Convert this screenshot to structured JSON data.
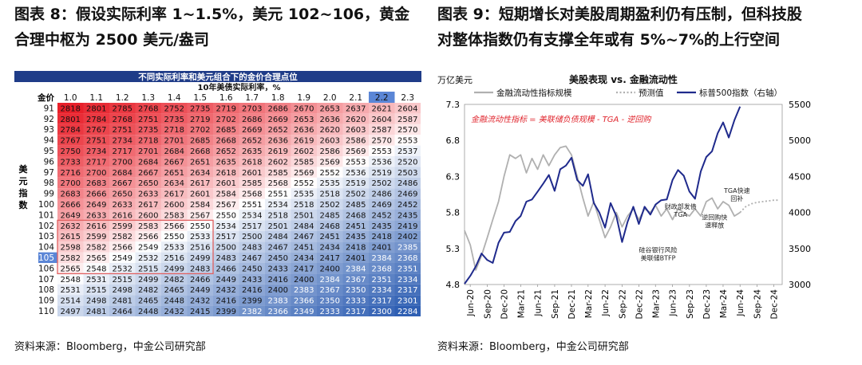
{
  "left": {
    "title_line1": "图表 8：假设实际利率 1~1.5%，美元 102~106，黄金",
    "title_line2": "合理中枢为 2500 美元/盎司",
    "source": "资料来源：Bloomberg，中金公司研究部"
  },
  "right": {
    "title_line1": "图表 9：短期增长对美股周期盈利仍有压制，但科技股",
    "title_line2": "对整体指数仍有支撑全年或有 5%~7%的上行空间",
    "source": "资料来源：Bloomberg，中金公司研究部"
  },
  "chart_data": [
    {
      "type": "heatmap",
      "title": "不同实际利率和美元组合下的金价合理点位",
      "xlabel": "10年美债实际利率，%",
      "ylabel": "美元指数",
      "corner_label": "金价",
      "highlight_row": "105",
      "highlight_cols": [
        "2.2"
      ],
      "scale_colors": {
        "high": "#e8202a",
        "mid": "#ffffff",
        "low": "#2f5fb3"
      },
      "box_color": "#e06060",
      "header_bar_color": "#1f3c88",
      "columns": [
        "1.0",
        "1.1",
        "1.2",
        "1.3",
        "1.4",
        "1.5",
        "1.6",
        "1.7",
        "1.8",
        "1.9",
        "2.0",
        "2.1",
        "2.2",
        "2.3"
      ],
      "rows": [
        "91",
        "92",
        "93",
        "94",
        "95",
        "96",
        "97",
        "98",
        "99",
        "100",
        "101",
        "102",
        "103",
        "104",
        "105",
        "106",
        "107",
        "108",
        "109",
        "110"
      ],
      "values": [
        [
          2818,
          2801,
          2785,
          2768,
          2752,
          2735,
          2719,
          2703,
          2686,
          2670,
          2653,
          2637,
          2621,
          2604
        ],
        [
          2801,
          2784,
          2768,
          2751,
          2735,
          2719,
          2702,
          2686,
          2669,
          2653,
          2636,
          2620,
          2604,
          2587
        ],
        [
          2784,
          2767,
          2751,
          2735,
          2718,
          2702,
          2685,
          2669,
          2652,
          2636,
          2620,
          2603,
          2587,
          2570
        ],
        [
          2767,
          2751,
          2734,
          2718,
          2701,
          2685,
          2668,
          2652,
          2636,
          2619,
          2603,
          2586,
          2570,
          2553
        ],
        [
          2750,
          2734,
          2717,
          2701,
          2684,
          2668,
          2652,
          2635,
          2619,
          2602,
          2586,
          2569,
          2553,
          2537
        ],
        [
          2733,
          2717,
          2700,
          2684,
          2667,
          2651,
          2635,
          2618,
          2602,
          2585,
          2569,
          2553,
          2536,
          2520
        ],
        [
          2716,
          2700,
          2684,
          2667,
          2651,
          2634,
          2618,
          2601,
          2585,
          2569,
          2552,
          2536,
          2519,
          2503
        ],
        [
          2700,
          2683,
          2667,
          2650,
          2634,
          2617,
          2601,
          2585,
          2568,
          2552,
          2535,
          2519,
          2502,
          2486
        ],
        [
          2683,
          2666,
          2650,
          2633,
          2617,
          2601,
          2584,
          2568,
          2551,
          2535,
          2518,
          2502,
          2486,
          2469
        ],
        [
          2666,
          2649,
          2633,
          2617,
          2600,
          2584,
          2567,
          2551,
          2534,
          2518,
          2502,
          2485,
          2469,
          2452
        ],
        [
          2649,
          2633,
          2616,
          2600,
          2583,
          2567,
          2550,
          2534,
          2518,
          2501,
          2485,
          2468,
          2452,
          2435
        ],
        [
          2632,
          2616,
          2599,
          2583,
          2566,
          2550,
          2534,
          2517,
          2501,
          2484,
          2468,
          2451,
          2435,
          2419
        ],
        [
          2615,
          2599,
          2582,
          2566,
          2550,
          2533,
          2517,
          2500,
          2484,
          2467,
          2451,
          2435,
          2418,
          2402
        ],
        [
          2598,
          2582,
          2566,
          2549,
          2533,
          2516,
          2500,
          2483,
          2467,
          2451,
          2434,
          2418,
          2401,
          2385
        ],
        [
          2582,
          2565,
          2549,
          2532,
          2516,
          2499,
          2483,
          2467,
          2450,
          2434,
          2417,
          2401,
          2384,
          2368
        ],
        [
          2565,
          2548,
          2532,
          2515,
          2499,
          2483,
          2466,
          2450,
          2433,
          2417,
          2400,
          2384,
          2368,
          2351
        ],
        [
          2548,
          2531,
          2515,
          2499,
          2482,
          2466,
          2449,
          2433,
          2416,
          2400,
          2384,
          2367,
          2351,
          2334
        ],
        [
          2531,
          2515,
          2498,
          2482,
          2465,
          2449,
          2432,
          2416,
          2400,
          2383,
          2367,
          2350,
          2334,
          2317
        ],
        [
          2514,
          2498,
          2481,
          2465,
          2448,
          2432,
          2416,
          2399,
          2383,
          2366,
          2350,
          2333,
          2317,
          2301
        ],
        [
          2497,
          2481,
          2464,
          2448,
          2432,
          2415,
          2399,
          2382,
          2366,
          2349,
          2333,
          2317,
          2300,
          2284
        ]
      ],
      "boxed_cells": {
        "rows": [
          "102",
          "106"
        ],
        "cols": [
          "1.0",
          "1.5"
        ]
      }
    },
    {
      "type": "line",
      "title": "美股表现 vs. 金融流动性",
      "ylabel_left": "万亿美元",
      "ylim_left": [
        4.8,
        7.3
      ],
      "yticks_left": [
        4.8,
        5.3,
        5.8,
        6.3,
        6.8,
        7.3
      ],
      "ylim_right": [
        3000,
        5500
      ],
      "yticks_right": [
        3000,
        3500,
        4000,
        4500,
        5000,
        5500
      ],
      "x_ticks": [
        "Jun-20",
        "Sep-20",
        "Dec-20",
        "Mar-21",
        "Jun-21",
        "Sep-21",
        "Dec-21",
        "Mar-22",
        "Jun-22",
        "Sep-22",
        "Dec-22",
        "Mar-23",
        "Jun-23",
        "Sep-23",
        "Dec-23",
        "Mar-24",
        "Jun-24",
        "Sep-24",
        "Dec-24"
      ],
      "x_range": [
        "2020-05-01",
        "2025-01-15"
      ],
      "formula_note": "金融流动性指标 = 美联储负债规模 - TGA - 逆回购",
      "annotations": [
        {
          "text": "TGA快速\n回补",
          "x": "2024-05-15",
          "y": 6.07
        },
        {
          "text": "财政部发债\nTGA",
          "x": "2023-07-15",
          "y": 5.85
        },
        {
          "text": "逆回购快\n速释放",
          "x": "2024-01-15",
          "y": 5.7
        },
        {
          "text": "硅谷银行风险\n美联储BTFP",
          "x": "2023-03-15",
          "y": 5.25
        }
      ],
      "series": [
        {
          "name": "金融流动性指标规模",
          "axis": "left",
          "color": "#b0b0b0",
          "style": "solid",
          "points": [
            [
              "2020-05-01",
              5.55
            ],
            [
              "2020-06-01",
              5.35
            ],
            [
              "2020-07-01",
              5.0
            ],
            [
              "2020-08-01",
              5.2
            ],
            [
              "2020-09-01",
              5.45
            ],
            [
              "2020-10-01",
              5.7
            ],
            [
              "2020-11-01",
              5.95
            ],
            [
              "2020-12-01",
              6.3
            ],
            [
              "2021-01-01",
              6.6
            ],
            [
              "2021-02-01",
              6.55
            ],
            [
              "2021-03-01",
              6.6
            ],
            [
              "2021-04-01",
              6.35
            ],
            [
              "2021-05-01",
              6.55
            ],
            [
              "2021-06-01",
              6.4
            ],
            [
              "2021-07-01",
              6.6
            ],
            [
              "2021-08-01",
              6.45
            ],
            [
              "2021-09-01",
              6.6
            ],
            [
              "2021-10-01",
              6.7
            ],
            [
              "2021-11-01",
              6.72
            ],
            [
              "2021-12-01",
              6.6
            ],
            [
              "2022-01-01",
              6.3
            ],
            [
              "2022-02-01",
              6.0
            ],
            [
              "2022-03-01",
              5.75
            ],
            [
              "2022-04-01",
              5.95
            ],
            [
              "2022-05-01",
              5.7
            ],
            [
              "2022-06-01",
              5.45
            ],
            [
              "2022-07-01",
              5.6
            ],
            [
              "2022-08-01",
              5.8
            ],
            [
              "2022-09-01",
              5.6
            ],
            [
              "2022-10-01",
              5.75
            ],
            [
              "2022-11-01",
              5.85
            ],
            [
              "2022-12-01",
              5.7
            ],
            [
              "2023-01-01",
              5.85
            ],
            [
              "2023-02-01",
              5.8
            ],
            [
              "2023-03-01",
              5.9
            ],
            [
              "2023-04-01",
              5.75
            ],
            [
              "2023-05-01",
              5.85
            ],
            [
              "2023-06-01",
              5.7
            ],
            [
              "2023-07-01",
              5.85
            ],
            [
              "2023-08-01",
              5.8
            ],
            [
              "2023-09-01",
              5.75
            ],
            [
              "2023-10-01",
              5.85
            ],
            [
              "2023-11-01",
              5.75
            ],
            [
              "2023-12-01",
              5.95
            ],
            [
              "2024-01-01",
              6.0
            ],
            [
              "2024-02-01",
              5.85
            ],
            [
              "2024-03-01",
              5.95
            ],
            [
              "2024-04-01",
              5.9
            ],
            [
              "2024-05-01",
              5.75
            ],
            [
              "2024-06-01",
              5.8
            ]
          ]
        },
        {
          "name": "预测值",
          "axis": "left",
          "color": "#b0b0b0",
          "style": "dotted",
          "points": [
            [
              "2024-06-01",
              5.8
            ],
            [
              "2024-07-01",
              5.88
            ],
            [
              "2024-08-01",
              5.92
            ],
            [
              "2024-09-01",
              5.94
            ],
            [
              "2024-10-01",
              5.95
            ],
            [
              "2024-11-01",
              5.96
            ],
            [
              "2024-12-01",
              5.97
            ],
            [
              "2025-01-01",
              5.97
            ]
          ]
        },
        {
          "name": "标普500指数（右轴）",
          "axis": "right",
          "color": "#1f2a8c",
          "style": "solid",
          "points": [
            [
              "2020-05-01",
              3010
            ],
            [
              "2020-06-01",
              3120
            ],
            [
              "2020-07-01",
              3250
            ],
            [
              "2020-08-01",
              3430
            ],
            [
              "2020-09-01",
              3340
            ],
            [
              "2020-10-01",
              3300
            ],
            [
              "2020-11-01",
              3580
            ],
            [
              "2020-12-01",
              3720
            ],
            [
              "2021-01-01",
              3730
            ],
            [
              "2021-02-01",
              3880
            ],
            [
              "2021-03-01",
              3950
            ],
            [
              "2021-04-01",
              4150
            ],
            [
              "2021-05-01",
              4180
            ],
            [
              "2021-06-01",
              4290
            ],
            [
              "2021-07-01",
              4400
            ],
            [
              "2021-08-01",
              4520
            ],
            [
              "2021-09-01",
              4300
            ],
            [
              "2021-10-01",
              4600
            ],
            [
              "2021-11-01",
              4650
            ],
            [
              "2021-12-01",
              4760
            ],
            [
              "2022-01-01",
              4450
            ],
            [
              "2022-02-01",
              4370
            ],
            [
              "2022-03-01",
              4530
            ],
            [
              "2022-04-01",
              4130
            ],
            [
              "2022-05-01",
              4000
            ],
            [
              "2022-06-01",
              3790
            ],
            [
              "2022-07-01",
              4130
            ],
            [
              "2022-08-01",
              3950
            ],
            [
              "2022-09-01",
              3590
            ],
            [
              "2022-10-01",
              3870
            ],
            [
              "2022-11-01",
              4080
            ],
            [
              "2022-12-01",
              3840
            ],
            [
              "2023-01-01",
              4080
            ],
            [
              "2023-02-01",
              3970
            ],
            [
              "2023-03-01",
              4110
            ],
            [
              "2023-04-01",
              4170
            ],
            [
              "2023-05-01",
              4180
            ],
            [
              "2023-06-01",
              4450
            ],
            [
              "2023-07-01",
              4590
            ],
            [
              "2023-08-01",
              4510
            ],
            [
              "2023-09-01",
              4290
            ],
            [
              "2023-10-01",
              4190
            ],
            [
              "2023-11-01",
              4570
            ],
            [
              "2023-12-01",
              4770
            ],
            [
              "2024-01-01",
              4850
            ],
            [
              "2024-02-01",
              5100
            ],
            [
              "2024-03-01",
              5250
            ],
            [
              "2024-04-01",
              5040
            ],
            [
              "2024-05-01",
              5280
            ],
            [
              "2024-06-01",
              5470
            ]
          ]
        }
      ]
    }
  ]
}
